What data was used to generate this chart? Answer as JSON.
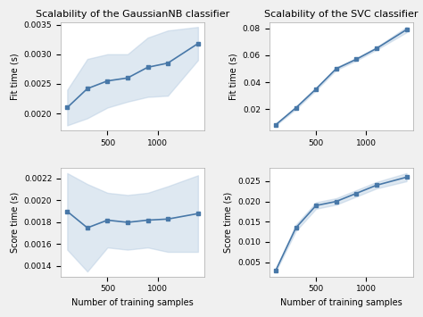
{
  "title_gnb": "Scalability of the GaussianNB classifier",
  "title_svc": "Scalability of the SVC classifier",
  "xlabel": "Number of training samples",
  "ylabel_fit": "Fit time (s)",
  "ylabel_score": "Score time (s)",
  "x": [
    100,
    300,
    500,
    700,
    900,
    1100,
    1400
  ],
  "gnb_fit_mean": [
    0.0021,
    0.00242,
    0.00255,
    0.0026,
    0.00278,
    0.00285,
    0.00318
  ],
  "gnb_fit_std": [
    0.0003,
    0.0005,
    0.00045,
    0.0004,
    0.0005,
    0.00055,
    0.00028
  ],
  "gnb_score_mean": [
    0.0019,
    0.00175,
    0.00182,
    0.0018,
    0.00182,
    0.00183,
    0.00188
  ],
  "gnb_score_std": [
    0.00035,
    0.0004,
    0.00025,
    0.00025,
    0.00025,
    0.0003,
    0.00035
  ],
  "svc_fit_mean": [
    0.0085,
    0.021,
    0.035,
    0.05,
    0.057,
    0.065,
    0.079
  ],
  "svc_fit_std": [
    0.0005,
    0.001,
    0.001,
    0.001,
    0.001,
    0.001,
    0.002
  ],
  "svc_score_mean": [
    0.003,
    0.0135,
    0.019,
    0.02,
    0.022,
    0.024,
    0.026
  ],
  "svc_score_std": [
    0.0003,
    0.0008,
    0.0008,
    0.0008,
    0.0008,
    0.0008,
    0.001
  ],
  "line_color": "#4878a8",
  "fill_color": "#aec6de",
  "background_color": "#f0f0f0",
  "title_fontsize": 8,
  "label_fontsize": 7,
  "tick_fontsize": 6.5
}
